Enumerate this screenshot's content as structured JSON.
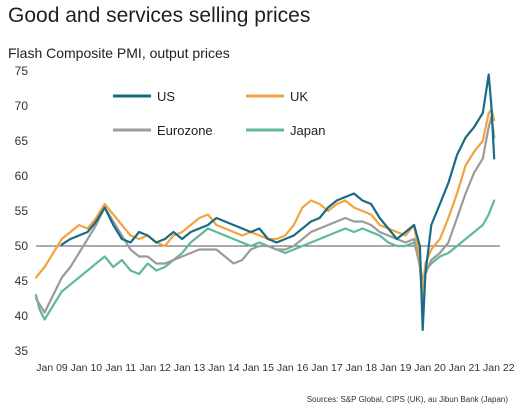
{
  "title": "Good and services selling prices",
  "subtitle": "Flash Composite PMI, output prices",
  "source": "Sources: S&P Global, CIPS (UK), au Jibun Bank (Japan)",
  "chart_data": {
    "type": "line",
    "x_tick_labels": [
      "Jan 09",
      "Jan 10",
      "Jan 11",
      "Jan 12",
      "Jan 13",
      "Jan 14",
      "Jan 15",
      "Jan 16",
      "Jan 17",
      "Jan 18",
      "Jan 19",
      "Jan 20",
      "Jan 21",
      "Jan 22"
    ],
    "ylim": [
      35,
      75
    ],
    "y_ticks": [
      35,
      40,
      45,
      50,
      55,
      60,
      65,
      70,
      75
    ],
    "reference_line": 50,
    "legend": [
      "US",
      "UK",
      "Eurozone",
      "Japan"
    ],
    "series": [
      {
        "name": "US",
        "color": "#1a6b85",
        "points": [
          [
            2009.75,
            50.2
          ],
          [
            2010.0,
            51.0
          ],
          [
            2010.25,
            51.5
          ],
          [
            2010.5,
            52.0
          ],
          [
            2010.75,
            53.5
          ],
          [
            2011.0,
            55.5
          ],
          [
            2011.25,
            53.0
          ],
          [
            2011.5,
            51.0
          ],
          [
            2011.75,
            50.5
          ],
          [
            2012.0,
            52.0
          ],
          [
            2012.25,
            51.5
          ],
          [
            2012.5,
            50.5
          ],
          [
            2012.75,
            51.0
          ],
          [
            2013.0,
            52.0
          ],
          [
            2013.25,
            51.0
          ],
          [
            2013.5,
            52.0
          ],
          [
            2013.75,
            52.5
          ],
          [
            2014.0,
            53.0
          ],
          [
            2014.25,
            54.0
          ],
          [
            2014.5,
            53.5
          ],
          [
            2014.75,
            53.0
          ],
          [
            2015.0,
            52.5
          ],
          [
            2015.25,
            52.0
          ],
          [
            2015.5,
            52.5
          ],
          [
            2015.75,
            51.0
          ],
          [
            2016.0,
            50.5
          ],
          [
            2016.25,
            51.0
          ],
          [
            2016.5,
            51.5
          ],
          [
            2016.75,
            52.5
          ],
          [
            2017.0,
            53.5
          ],
          [
            2017.25,
            54.0
          ],
          [
            2017.5,
            55.5
          ],
          [
            2017.75,
            56.5
          ],
          [
            2018.0,
            57.0
          ],
          [
            2018.25,
            57.5
          ],
          [
            2018.5,
            56.5
          ],
          [
            2018.75,
            56.0
          ],
          [
            2019.0,
            54.0
          ],
          [
            2019.25,
            52.5
          ],
          [
            2019.5,
            51.0
          ],
          [
            2019.75,
            52.0
          ],
          [
            2020.0,
            53.0
          ],
          [
            2020.17,
            50.0
          ],
          [
            2020.25,
            38.0
          ],
          [
            2020.33,
            46.0
          ],
          [
            2020.5,
            53.0
          ],
          [
            2020.75,
            56.0
          ],
          [
            2021.0,
            59.0
          ],
          [
            2021.25,
            63.0
          ],
          [
            2021.5,
            65.5
          ],
          [
            2021.75,
            67.0
          ],
          [
            2022.0,
            69.0
          ],
          [
            2022.17,
            74.5
          ],
          [
            2022.25,
            70.0
          ],
          [
            2022.33,
            62.5
          ]
        ]
      },
      {
        "name": "UK",
        "color": "#f2a441",
        "points": [
          [
            2009.0,
            45.5
          ],
          [
            2009.25,
            47.0
          ],
          [
            2009.5,
            49.0
          ],
          [
            2009.75,
            51.0
          ],
          [
            2010.0,
            52.0
          ],
          [
            2010.25,
            53.0
          ],
          [
            2010.5,
            52.5
          ],
          [
            2010.75,
            54.0
          ],
          [
            2011.0,
            56.0
          ],
          [
            2011.25,
            54.5
          ],
          [
            2011.5,
            53.0
          ],
          [
            2011.75,
            51.5
          ],
          [
            2012.0,
            51.0
          ],
          [
            2012.25,
            51.5
          ],
          [
            2012.5,
            50.5
          ],
          [
            2012.75,
            50.0
          ],
          [
            2013.0,
            51.5
          ],
          [
            2013.25,
            52.0
          ],
          [
            2013.5,
            53.0
          ],
          [
            2013.75,
            54.0
          ],
          [
            2014.0,
            54.5
          ],
          [
            2014.25,
            53.0
          ],
          [
            2014.5,
            52.5
          ],
          [
            2014.75,
            52.0
          ],
          [
            2015.0,
            51.5
          ],
          [
            2015.25,
            52.0
          ],
          [
            2015.5,
            51.5
          ],
          [
            2015.75,
            51.0
          ],
          [
            2016.0,
            51.0
          ],
          [
            2016.25,
            51.5
          ],
          [
            2016.5,
            53.0
          ],
          [
            2016.75,
            55.5
          ],
          [
            2017.0,
            56.5
          ],
          [
            2017.25,
            56.0
          ],
          [
            2017.5,
            55.0
          ],
          [
            2017.75,
            56.0
          ],
          [
            2018.0,
            56.5
          ],
          [
            2018.25,
            55.5
          ],
          [
            2018.5,
            55.0
          ],
          [
            2018.75,
            54.5
          ],
          [
            2019.0,
            53.0
          ],
          [
            2019.25,
            52.5
          ],
          [
            2019.5,
            52.0
          ],
          [
            2019.75,
            51.5
          ],
          [
            2020.0,
            53.0
          ],
          [
            2020.17,
            48.0
          ],
          [
            2020.25,
            43.5
          ],
          [
            2020.33,
            47.5
          ],
          [
            2020.5,
            49.5
          ],
          [
            2020.75,
            51.0
          ],
          [
            2021.0,
            54.0
          ],
          [
            2021.25,
            57.5
          ],
          [
            2021.5,
            61.5
          ],
          [
            2021.75,
            63.5
          ],
          [
            2022.0,
            65.0
          ],
          [
            2022.17,
            69.0
          ],
          [
            2022.25,
            69.5
          ],
          [
            2022.33,
            68.0
          ]
        ]
      },
      {
        "name": "Eurozone",
        "color": "#9b9b9b",
        "points": [
          [
            2009.0,
            42.5
          ],
          [
            2009.25,
            40.5
          ],
          [
            2009.5,
            43.0
          ],
          [
            2009.75,
            45.5
          ],
          [
            2010.0,
            47.0
          ],
          [
            2010.25,
            49.0
          ],
          [
            2010.5,
            51.0
          ],
          [
            2010.75,
            53.0
          ],
          [
            2011.0,
            55.5
          ],
          [
            2011.25,
            53.5
          ],
          [
            2011.5,
            51.5
          ],
          [
            2011.75,
            49.5
          ],
          [
            2012.0,
            48.5
          ],
          [
            2012.25,
            48.5
          ],
          [
            2012.5,
            47.5
          ],
          [
            2012.75,
            47.5
          ],
          [
            2013.0,
            48.0
          ],
          [
            2013.25,
            48.5
          ],
          [
            2013.5,
            49.0
          ],
          [
            2013.75,
            49.5
          ],
          [
            2014.0,
            49.5
          ],
          [
            2014.25,
            49.5
          ],
          [
            2014.5,
            48.5
          ],
          [
            2014.75,
            47.5
          ],
          [
            2015.0,
            48.0
          ],
          [
            2015.25,
            49.5
          ],
          [
            2015.5,
            50.0
          ],
          [
            2015.75,
            50.0
          ],
          [
            2016.0,
            49.5
          ],
          [
            2016.25,
            49.5
          ],
          [
            2016.5,
            50.0
          ],
          [
            2016.75,
            51.0
          ],
          [
            2017.0,
            52.0
          ],
          [
            2017.25,
            52.5
          ],
          [
            2017.5,
            53.0
          ],
          [
            2017.75,
            53.5
          ],
          [
            2018.0,
            54.0
          ],
          [
            2018.25,
            53.5
          ],
          [
            2018.5,
            53.5
          ],
          [
            2018.75,
            53.0
          ],
          [
            2019.0,
            52.0
          ],
          [
            2019.25,
            51.5
          ],
          [
            2019.5,
            51.0
          ],
          [
            2019.75,
            50.5
          ],
          [
            2020.0,
            51.0
          ],
          [
            2020.17,
            47.0
          ],
          [
            2020.25,
            41.5
          ],
          [
            2020.33,
            46.0
          ],
          [
            2020.5,
            48.0
          ],
          [
            2020.75,
            49.0
          ],
          [
            2021.0,
            50.5
          ],
          [
            2021.25,
            54.0
          ],
          [
            2021.5,
            57.5
          ],
          [
            2021.75,
            60.5
          ],
          [
            2022.0,
            62.5
          ],
          [
            2022.17,
            67.0
          ],
          [
            2022.25,
            68.5
          ],
          [
            2022.33,
            65.5
          ]
        ]
      },
      {
        "name": "Japan",
        "color": "#5fb996",
        "points": [
          [
            2009.0,
            43.0
          ],
          [
            2009.1,
            41.0
          ],
          [
            2009.25,
            39.5
          ],
          [
            2009.5,
            41.5
          ],
          [
            2009.75,
            43.5
          ],
          [
            2010.0,
            44.5
          ],
          [
            2010.25,
            45.5
          ],
          [
            2010.5,
            46.5
          ],
          [
            2010.75,
            47.5
          ],
          [
            2011.0,
            48.5
          ],
          [
            2011.25,
            47.0
          ],
          [
            2011.5,
            48.0
          ],
          [
            2011.75,
            46.5
          ],
          [
            2012.0,
            46.0
          ],
          [
            2012.25,
            47.5
          ],
          [
            2012.5,
            46.5
          ],
          [
            2012.75,
            47.0
          ],
          [
            2013.0,
            48.0
          ],
          [
            2013.25,
            49.0
          ],
          [
            2013.5,
            50.5
          ],
          [
            2013.75,
            51.5
          ],
          [
            2014.0,
            52.5
          ],
          [
            2014.25,
            52.0
          ],
          [
            2014.5,
            51.5
          ],
          [
            2014.75,
            51.0
          ],
          [
            2015.0,
            50.5
          ],
          [
            2015.25,
            50.0
          ],
          [
            2015.5,
            50.5
          ],
          [
            2015.75,
            50.0
          ],
          [
            2016.0,
            49.5
          ],
          [
            2016.25,
            49.0
          ],
          [
            2016.5,
            49.5
          ],
          [
            2016.75,
            50.0
          ],
          [
            2017.0,
            50.5
          ],
          [
            2017.25,
            51.0
          ],
          [
            2017.5,
            51.5
          ],
          [
            2017.75,
            52.0
          ],
          [
            2018.0,
            52.5
          ],
          [
            2018.25,
            52.0
          ],
          [
            2018.5,
            52.5
          ],
          [
            2018.75,
            52.0
          ],
          [
            2019.0,
            51.5
          ],
          [
            2019.25,
            50.5
          ],
          [
            2019.5,
            50.0
          ],
          [
            2019.75,
            50.0
          ],
          [
            2020.0,
            50.5
          ],
          [
            2020.17,
            47.5
          ],
          [
            2020.25,
            45.0
          ],
          [
            2020.33,
            46.5
          ],
          [
            2020.5,
            47.5
          ],
          [
            2020.75,
            48.5
          ],
          [
            2021.0,
            49.0
          ],
          [
            2021.25,
            50.0
          ],
          [
            2021.5,
            51.0
          ],
          [
            2021.75,
            52.0
          ],
          [
            2022.0,
            53.0
          ],
          [
            2022.17,
            54.5
          ],
          [
            2022.25,
            55.5
          ],
          [
            2022.33,
            56.5
          ]
        ]
      }
    ]
  }
}
